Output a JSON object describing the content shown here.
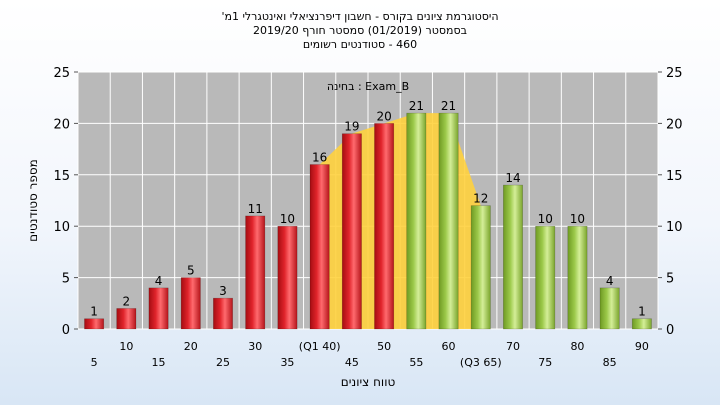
{
  "header": {
    "title_line_1": "היסטוגרמת ציונים בקורס - חשבון דיפרנציאלי ואינטגרלי 1מ'",
    "title_line_2": "בסמסטר  (01/2019)  סמסטר חורף  2019/20",
    "title_line_3": "460 - סטודנטים רשומים"
  },
  "chart_data": {
    "type": "bar",
    "title": "היסטוגרמת ציונים בקורס - חשבון דיפרנציאלי ואינטגרלי 1מ'",
    "subtitle": "בסמסטר  (01/2019)  סמסטר חורף  2019/20 | 460 - סטודנטים רשומים",
    "annotation": "בחינה : Exam_B",
    "xlabel": "טווח ציונים",
    "ylabel": "מספר סטודנטים",
    "ylim": [
      0,
      25
    ],
    "yticks": [
      0,
      5,
      10,
      15,
      20,
      25
    ],
    "grid": true,
    "categories": [
      "5",
      "10",
      "15",
      "20",
      "25",
      "30",
      "35",
      "(Q1 40)",
      "45",
      "50",
      "55",
      "60",
      "(Q3 65)",
      "70",
      "75",
      "80",
      "85",
      "90"
    ],
    "values": [
      1,
      2,
      4,
      5,
      3,
      11,
      10,
      16,
      19,
      20,
      21,
      21,
      12,
      14,
      10,
      10,
      4,
      1
    ],
    "bar_colors": [
      "red",
      "red",
      "red",
      "red",
      "red",
      "red",
      "red",
      "red",
      "red",
      "red",
      "green",
      "green",
      "green",
      "green",
      "green",
      "green",
      "green",
      "green"
    ],
    "colors": {
      "red_bar": "#e0242b",
      "green_bar": "#9cc94a",
      "plot_background": "#b9b9b9",
      "shaded_area": "#ffd23e"
    }
  }
}
